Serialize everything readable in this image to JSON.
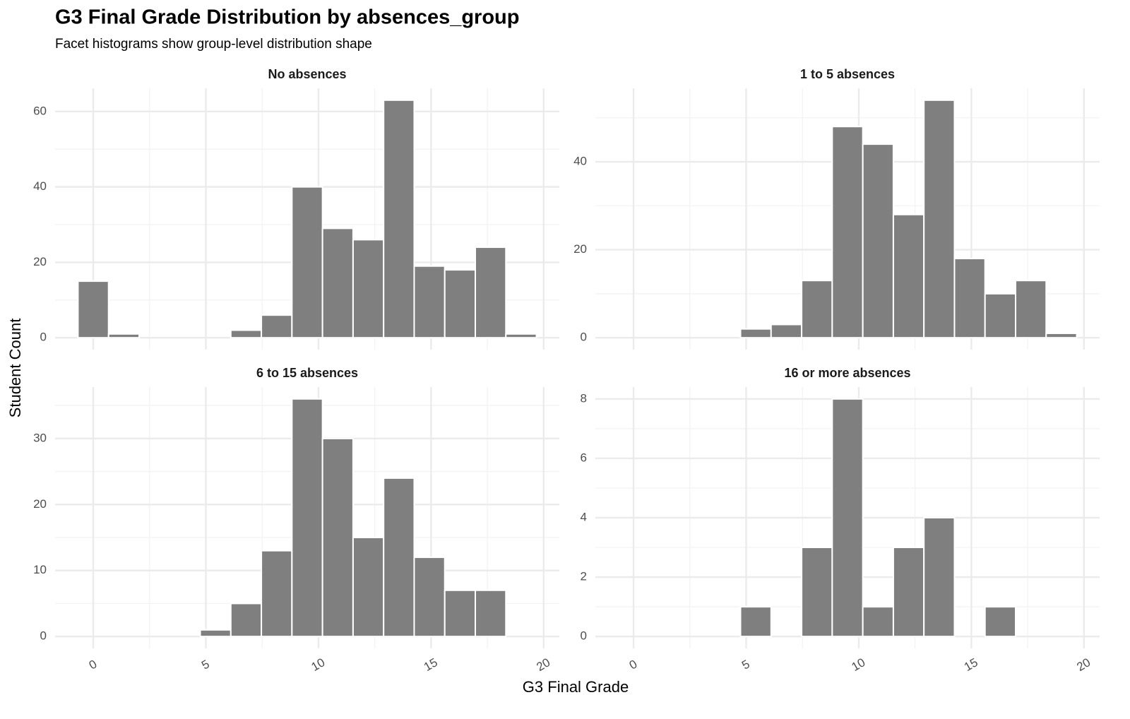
{
  "title": "G3 Final Grade Distribution by absences_group",
  "subtitle": "Facet histograms show group-level distribution shape",
  "x_label": "G3 Final Grade",
  "y_label": "Student Count",
  "chart_data": [
    {
      "type": "histogram",
      "title": "No absences",
      "bins": [
        -0.679,
        0.679,
        2.036,
        3.393,
        4.75,
        6.107,
        7.464,
        8.821,
        10.179,
        11.536,
        12.893,
        14.25,
        15.607,
        16.964,
        18.321,
        19.679
      ],
      "values": [
        15,
        1,
        0,
        0,
        0,
        2,
        6,
        40,
        29,
        26,
        63,
        19,
        18,
        24,
        1
      ],
      "color": "#7f7f7f",
      "xlim": [
        -1.696,
        20.696
      ],
      "ylim": [
        -3.15,
        66.15
      ],
      "xticks": [
        0,
        5,
        10,
        15,
        20
      ],
      "yticks": [
        0,
        20,
        40,
        60
      ],
      "x_minor_ticks": [
        2.5,
        7.5,
        12.5,
        17.5
      ],
      "y_minor_ticks": [
        10,
        30,
        50
      ],
      "grid": true
    },
    {
      "type": "histogram",
      "title": "1 to 5 absences",
      "bins": [
        -0.679,
        0.679,
        2.036,
        3.393,
        4.75,
        6.107,
        7.464,
        8.821,
        10.179,
        11.536,
        12.893,
        14.25,
        15.607,
        16.964,
        18.321,
        19.679
      ],
      "values": [
        0,
        0,
        0,
        0,
        2,
        3,
        13,
        48,
        44,
        28,
        54,
        18,
        10,
        13,
        1
      ],
      "color": "#7f7f7f",
      "xlim": [
        -1.696,
        20.696
      ],
      "ylim": [
        -2.7,
        56.7
      ],
      "xticks": [
        0,
        5,
        10,
        15,
        20
      ],
      "yticks": [
        0,
        20,
        40
      ],
      "x_minor_ticks": [
        2.5,
        7.5,
        12.5,
        17.5
      ],
      "y_minor_ticks": [
        10,
        30,
        50
      ],
      "grid": true
    },
    {
      "type": "histogram",
      "title": "6 to 15 absences",
      "bins": [
        -0.679,
        0.679,
        2.036,
        3.393,
        4.75,
        6.107,
        7.464,
        8.821,
        10.179,
        11.536,
        12.893,
        14.25,
        15.607,
        16.964,
        18.321,
        19.679
      ],
      "values": [
        0,
        0,
        0,
        0,
        1,
        5,
        13,
        36,
        30,
        15,
        24,
        12,
        7,
        7,
        0
      ],
      "color": "#7f7f7f",
      "xlim": [
        -1.696,
        20.696
      ],
      "ylim": [
        -1.8,
        37.8
      ],
      "xticks": [
        0,
        5,
        10,
        15,
        20
      ],
      "yticks": [
        0,
        10,
        20,
        30
      ],
      "x_minor_ticks": [
        2.5,
        7.5,
        12.5,
        17.5
      ],
      "y_minor_ticks": [
        5,
        15,
        25,
        35
      ],
      "grid": true
    },
    {
      "type": "histogram",
      "title": "16 or more absences",
      "bins": [
        -0.679,
        0.679,
        2.036,
        3.393,
        4.75,
        6.107,
        7.464,
        8.821,
        10.179,
        11.536,
        12.893,
        14.25,
        15.607,
        16.964,
        18.321,
        19.679
      ],
      "values": [
        0,
        0,
        0,
        0,
        1,
        0,
        3,
        8,
        1,
        3,
        4,
        0,
        1,
        0,
        0
      ],
      "color": "#7f7f7f",
      "xlim": [
        -1.696,
        20.696
      ],
      "ylim": [
        -0.4,
        8.4
      ],
      "xticks": [
        0,
        5,
        10,
        15,
        20
      ],
      "yticks": [
        0,
        2,
        4,
        6,
        8
      ],
      "x_minor_ticks": [
        2.5,
        7.5,
        12.5,
        17.5
      ],
      "y_minor_ticks": [
        1,
        3,
        5,
        7
      ],
      "grid": true
    }
  ]
}
